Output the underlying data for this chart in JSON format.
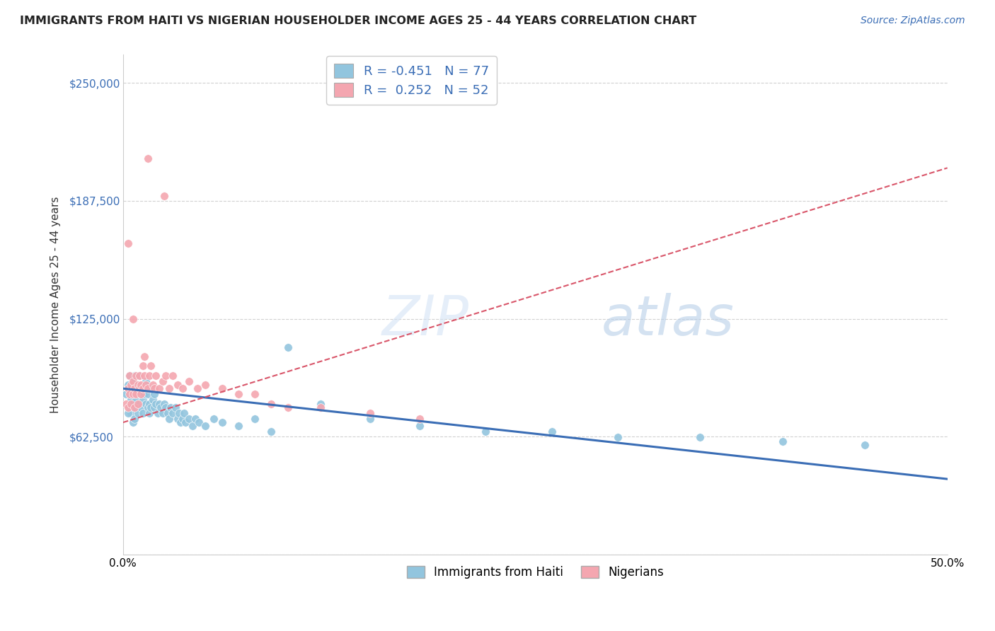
{
  "title": "IMMIGRANTS FROM HAITI VS NIGERIAN HOUSEHOLDER INCOME AGES 25 - 44 YEARS CORRELATION CHART",
  "source": "Source: ZipAtlas.com",
  "ylabel": "Householder Income Ages 25 - 44 years",
  "xlim": [
    0.0,
    0.5
  ],
  "ylim": [
    0,
    265000
  ],
  "yticks": [
    0,
    62500,
    125000,
    187500,
    250000
  ],
  "ytick_labels": [
    "",
    "$62,500",
    "$125,000",
    "$187,500",
    "$250,000"
  ],
  "xticks": [
    0.0,
    0.1,
    0.2,
    0.3,
    0.4,
    0.5
  ],
  "xtick_labels": [
    "0.0%",
    "",
    "",
    "",
    "",
    "50.0%"
  ],
  "haiti_color": "#92c5de",
  "nigeria_color": "#f4a6b0",
  "haiti_line_color": "#3a6db5",
  "nigeria_line_color": "#d9566a",
  "haiti_R": -0.451,
  "haiti_N": 77,
  "nigeria_R": 0.252,
  "nigeria_N": 52,
  "watermark_zip": "ZIP",
  "watermark_atlas": "atlas",
  "haiti_scatter_x": [
    0.002,
    0.003,
    0.004,
    0.004,
    0.005,
    0.005,
    0.005,
    0.006,
    0.006,
    0.006,
    0.007,
    0.007,
    0.007,
    0.008,
    0.008,
    0.008,
    0.009,
    0.009,
    0.01,
    0.01,
    0.01,
    0.011,
    0.011,
    0.012,
    0.012,
    0.013,
    0.013,
    0.014,
    0.014,
    0.015,
    0.015,
    0.016,
    0.016,
    0.017,
    0.017,
    0.018,
    0.019,
    0.019,
    0.02,
    0.021,
    0.022,
    0.023,
    0.024,
    0.025,
    0.026,
    0.027,
    0.028,
    0.029,
    0.03,
    0.032,
    0.033,
    0.034,
    0.035,
    0.036,
    0.037,
    0.038,
    0.04,
    0.042,
    0.044,
    0.046,
    0.05,
    0.055,
    0.06,
    0.07,
    0.08,
    0.09,
    0.1,
    0.12,
    0.15,
    0.18,
    0.22,
    0.26,
    0.3,
    0.35,
    0.4,
    0.45,
    0.003
  ],
  "haiti_scatter_y": [
    85000,
    90000,
    78000,
    95000,
    82000,
    75000,
    88000,
    80000,
    92000,
    70000,
    85000,
    95000,
    72000,
    88000,
    78000,
    82000,
    90000,
    75000,
    85000,
    80000,
    95000,
    78000,
    88000,
    82000,
    75000,
    90000,
    85000,
    80000,
    92000,
    78000,
    85000,
    80000,
    75000,
    88000,
    78000,
    82000,
    78000,
    85000,
    80000,
    75000,
    80000,
    78000,
    75000,
    80000,
    78000,
    75000,
    72000,
    78000,
    75000,
    78000,
    72000,
    75000,
    70000,
    72000,
    75000,
    70000,
    72000,
    68000,
    72000,
    70000,
    68000,
    72000,
    70000,
    68000,
    72000,
    65000,
    110000,
    80000,
    72000,
    68000,
    65000,
    65000,
    62000,
    62000,
    60000,
    58000,
    75000
  ],
  "nigeria_scatter_x": [
    0.002,
    0.003,
    0.003,
    0.004,
    0.004,
    0.005,
    0.005,
    0.006,
    0.006,
    0.007,
    0.007,
    0.008,
    0.008,
    0.009,
    0.009,
    0.01,
    0.01,
    0.011,
    0.011,
    0.012,
    0.012,
    0.013,
    0.013,
    0.014,
    0.015,
    0.016,
    0.017,
    0.018,
    0.019,
    0.02,
    0.022,
    0.024,
    0.026,
    0.028,
    0.03,
    0.033,
    0.036,
    0.04,
    0.045,
    0.05,
    0.06,
    0.07,
    0.08,
    0.09,
    0.1,
    0.12,
    0.15,
    0.18,
    0.003,
    0.006,
    0.015,
    0.025
  ],
  "nigeria_scatter_y": [
    80000,
    88000,
    78000,
    95000,
    85000,
    90000,
    80000,
    85000,
    92000,
    88000,
    78000,
    95000,
    85000,
    90000,
    80000,
    88000,
    95000,
    85000,
    90000,
    100000,
    88000,
    95000,
    105000,
    90000,
    88000,
    95000,
    100000,
    90000,
    88000,
    95000,
    88000,
    92000,
    95000,
    88000,
    95000,
    90000,
    88000,
    92000,
    88000,
    90000,
    88000,
    85000,
    85000,
    80000,
    78000,
    78000,
    75000,
    72000,
    165000,
    125000,
    210000,
    190000
  ]
}
